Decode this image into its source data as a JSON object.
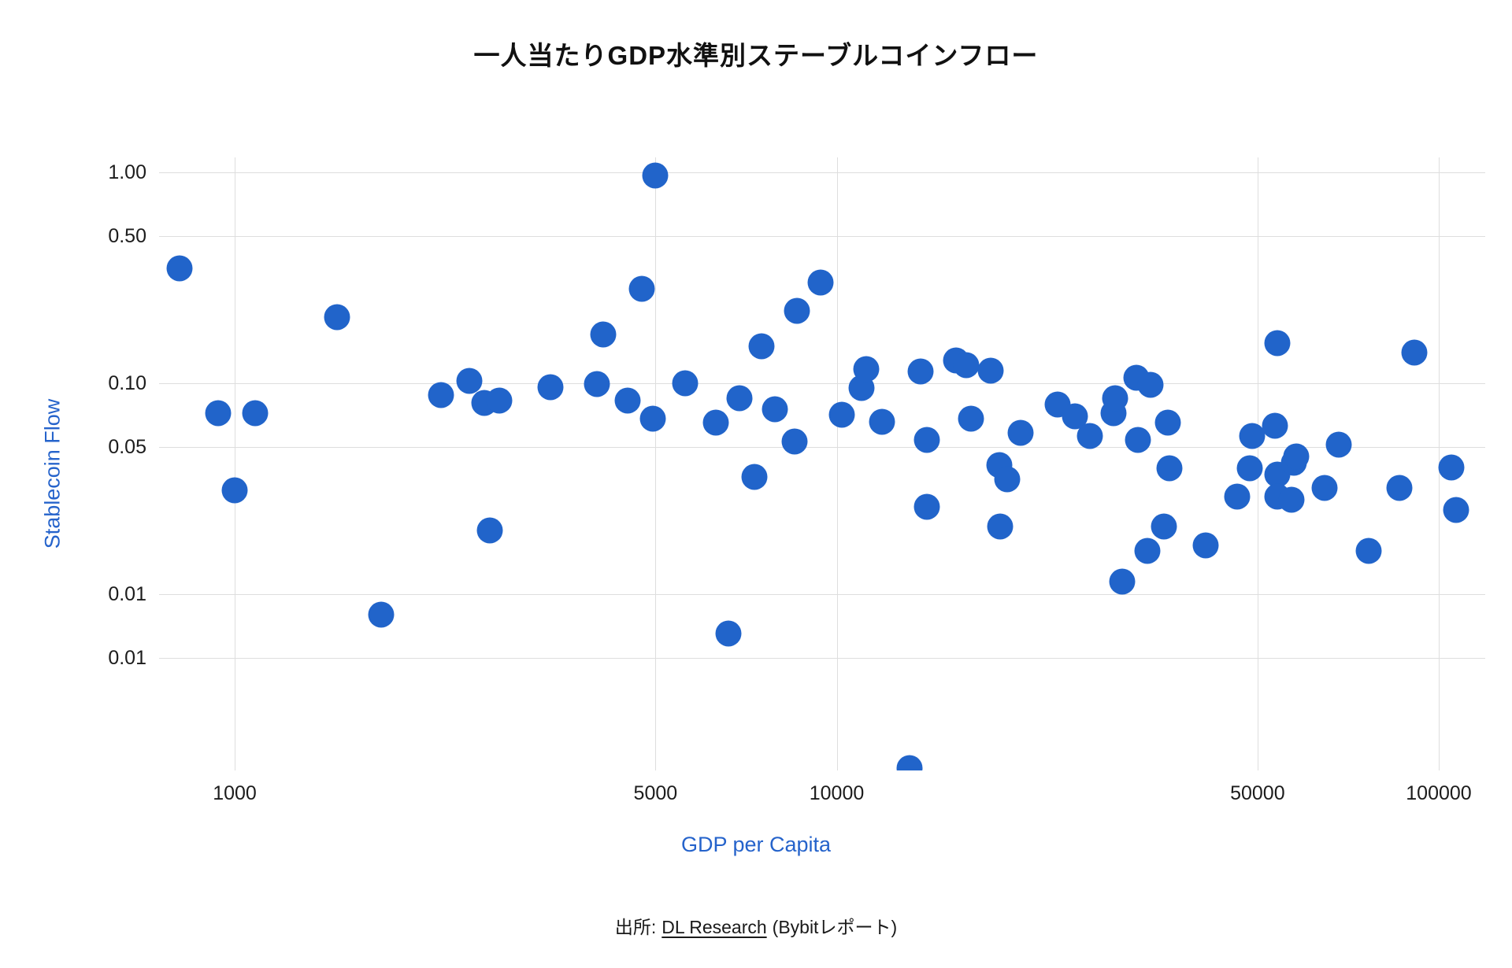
{
  "source": {
    "prefix": "出所:",
    "link": "DL Research",
    "suffix": "(Bybitレポート)"
  },
  "chart_data": {
    "type": "scatter",
    "title": "一人当たりGDP水準別ステーブルコインフロー",
    "xlabel": "GDP per Capita",
    "ylabel": "Stablecoin Flow",
    "x_scale": "log",
    "y_scale": "log",
    "x_range": [
      750,
      119000
    ],
    "y_range": [
      0.00146,
      1.18
    ],
    "grid": true,
    "legend": false,
    "marker_color": "#2164CA",
    "gridline_color": "#dedede",
    "x_ticks": {
      "values": [
        1000,
        5000,
        10000,
        50000,
        100000
      ],
      "labels": [
        "1000",
        "5000",
        "10000",
        "50000",
        "100000"
      ]
    },
    "y_ticks": {
      "values": [
        1.0,
        0.5,
        0.1,
        0.05,
        0.01,
        0.005
      ],
      "labels": [
        "1.00",
        "0.50",
        "0.10",
        "0.05",
        "0.01",
        "0.01"
      ]
    },
    "points": [
      [
        810,
        0.35
      ],
      [
        940,
        0.072
      ],
      [
        1000,
        0.031
      ],
      [
        1080,
        0.072
      ],
      [
        1480,
        0.205
      ],
      [
        1750,
        0.008
      ],
      [
        2200,
        0.088
      ],
      [
        2450,
        0.103
      ],
      [
        2600,
        0.081
      ],
      [
        2650,
        0.02
      ],
      [
        2750,
        0.083
      ],
      [
        3350,
        0.096
      ],
      [
        4000,
        0.099
      ],
      [
        4100,
        0.17
      ],
      [
        4500,
        0.083
      ],
      [
        4750,
        0.28
      ],
      [
        4950,
        0.068
      ],
      [
        5000,
        0.97
      ],
      [
        5600,
        0.1
      ],
      [
        6300,
        0.065
      ],
      [
        6600,
        0.0065
      ],
      [
        6900,
        0.085
      ],
      [
        7300,
        0.036
      ],
      [
        7500,
        0.15
      ],
      [
        7900,
        0.075
      ],
      [
        8500,
        0.053
      ],
      [
        8600,
        0.22
      ],
      [
        9400,
        0.3
      ],
      [
        10200,
        0.071
      ],
      [
        11000,
        0.095
      ],
      [
        11200,
        0.117
      ],
      [
        11900,
        0.0655
      ],
      [
        13200,
        0.0015
      ],
      [
        13800,
        0.114
      ],
      [
        14100,
        0.054
      ],
      [
        14100,
        0.026
      ],
      [
        15800,
        0.128
      ],
      [
        16400,
        0.122
      ],
      [
        16700,
        0.068
      ],
      [
        18000,
        0.115
      ],
      [
        18600,
        0.041
      ],
      [
        18700,
        0.021
      ],
      [
        19200,
        0.035
      ],
      [
        20200,
        0.058
      ],
      [
        23300,
        0.079
      ],
      [
        24900,
        0.07
      ],
      [
        26300,
        0.056
      ],
      [
        28800,
        0.072
      ],
      [
        29000,
        0.085
      ],
      [
        29800,
        0.0115
      ],
      [
        31500,
        0.106
      ],
      [
        31600,
        0.054
      ],
      [
        32800,
        0.016
      ],
      [
        33200,
        0.0985
      ],
      [
        35000,
        0.021
      ],
      [
        35500,
        0.065
      ],
      [
        35700,
        0.0395
      ],
      [
        41000,
        0.017
      ],
      [
        46300,
        0.029
      ],
      [
        48600,
        0.0395
      ],
      [
        49000,
        0.056
      ],
      [
        53500,
        0.063
      ],
      [
        53900,
        0.037
      ],
      [
        53900,
        0.029
      ],
      [
        54000,
        0.155
      ],
      [
        57000,
        0.028
      ],
      [
        57500,
        0.042
      ],
      [
        58000,
        0.045
      ],
      [
        64700,
        0.032
      ],
      [
        68200,
        0.051
      ],
      [
        76500,
        0.016
      ],
      [
        86000,
        0.032
      ],
      [
        91000,
        0.14
      ],
      [
        105000,
        0.04
      ],
      [
        107000,
        0.025
      ]
    ]
  }
}
